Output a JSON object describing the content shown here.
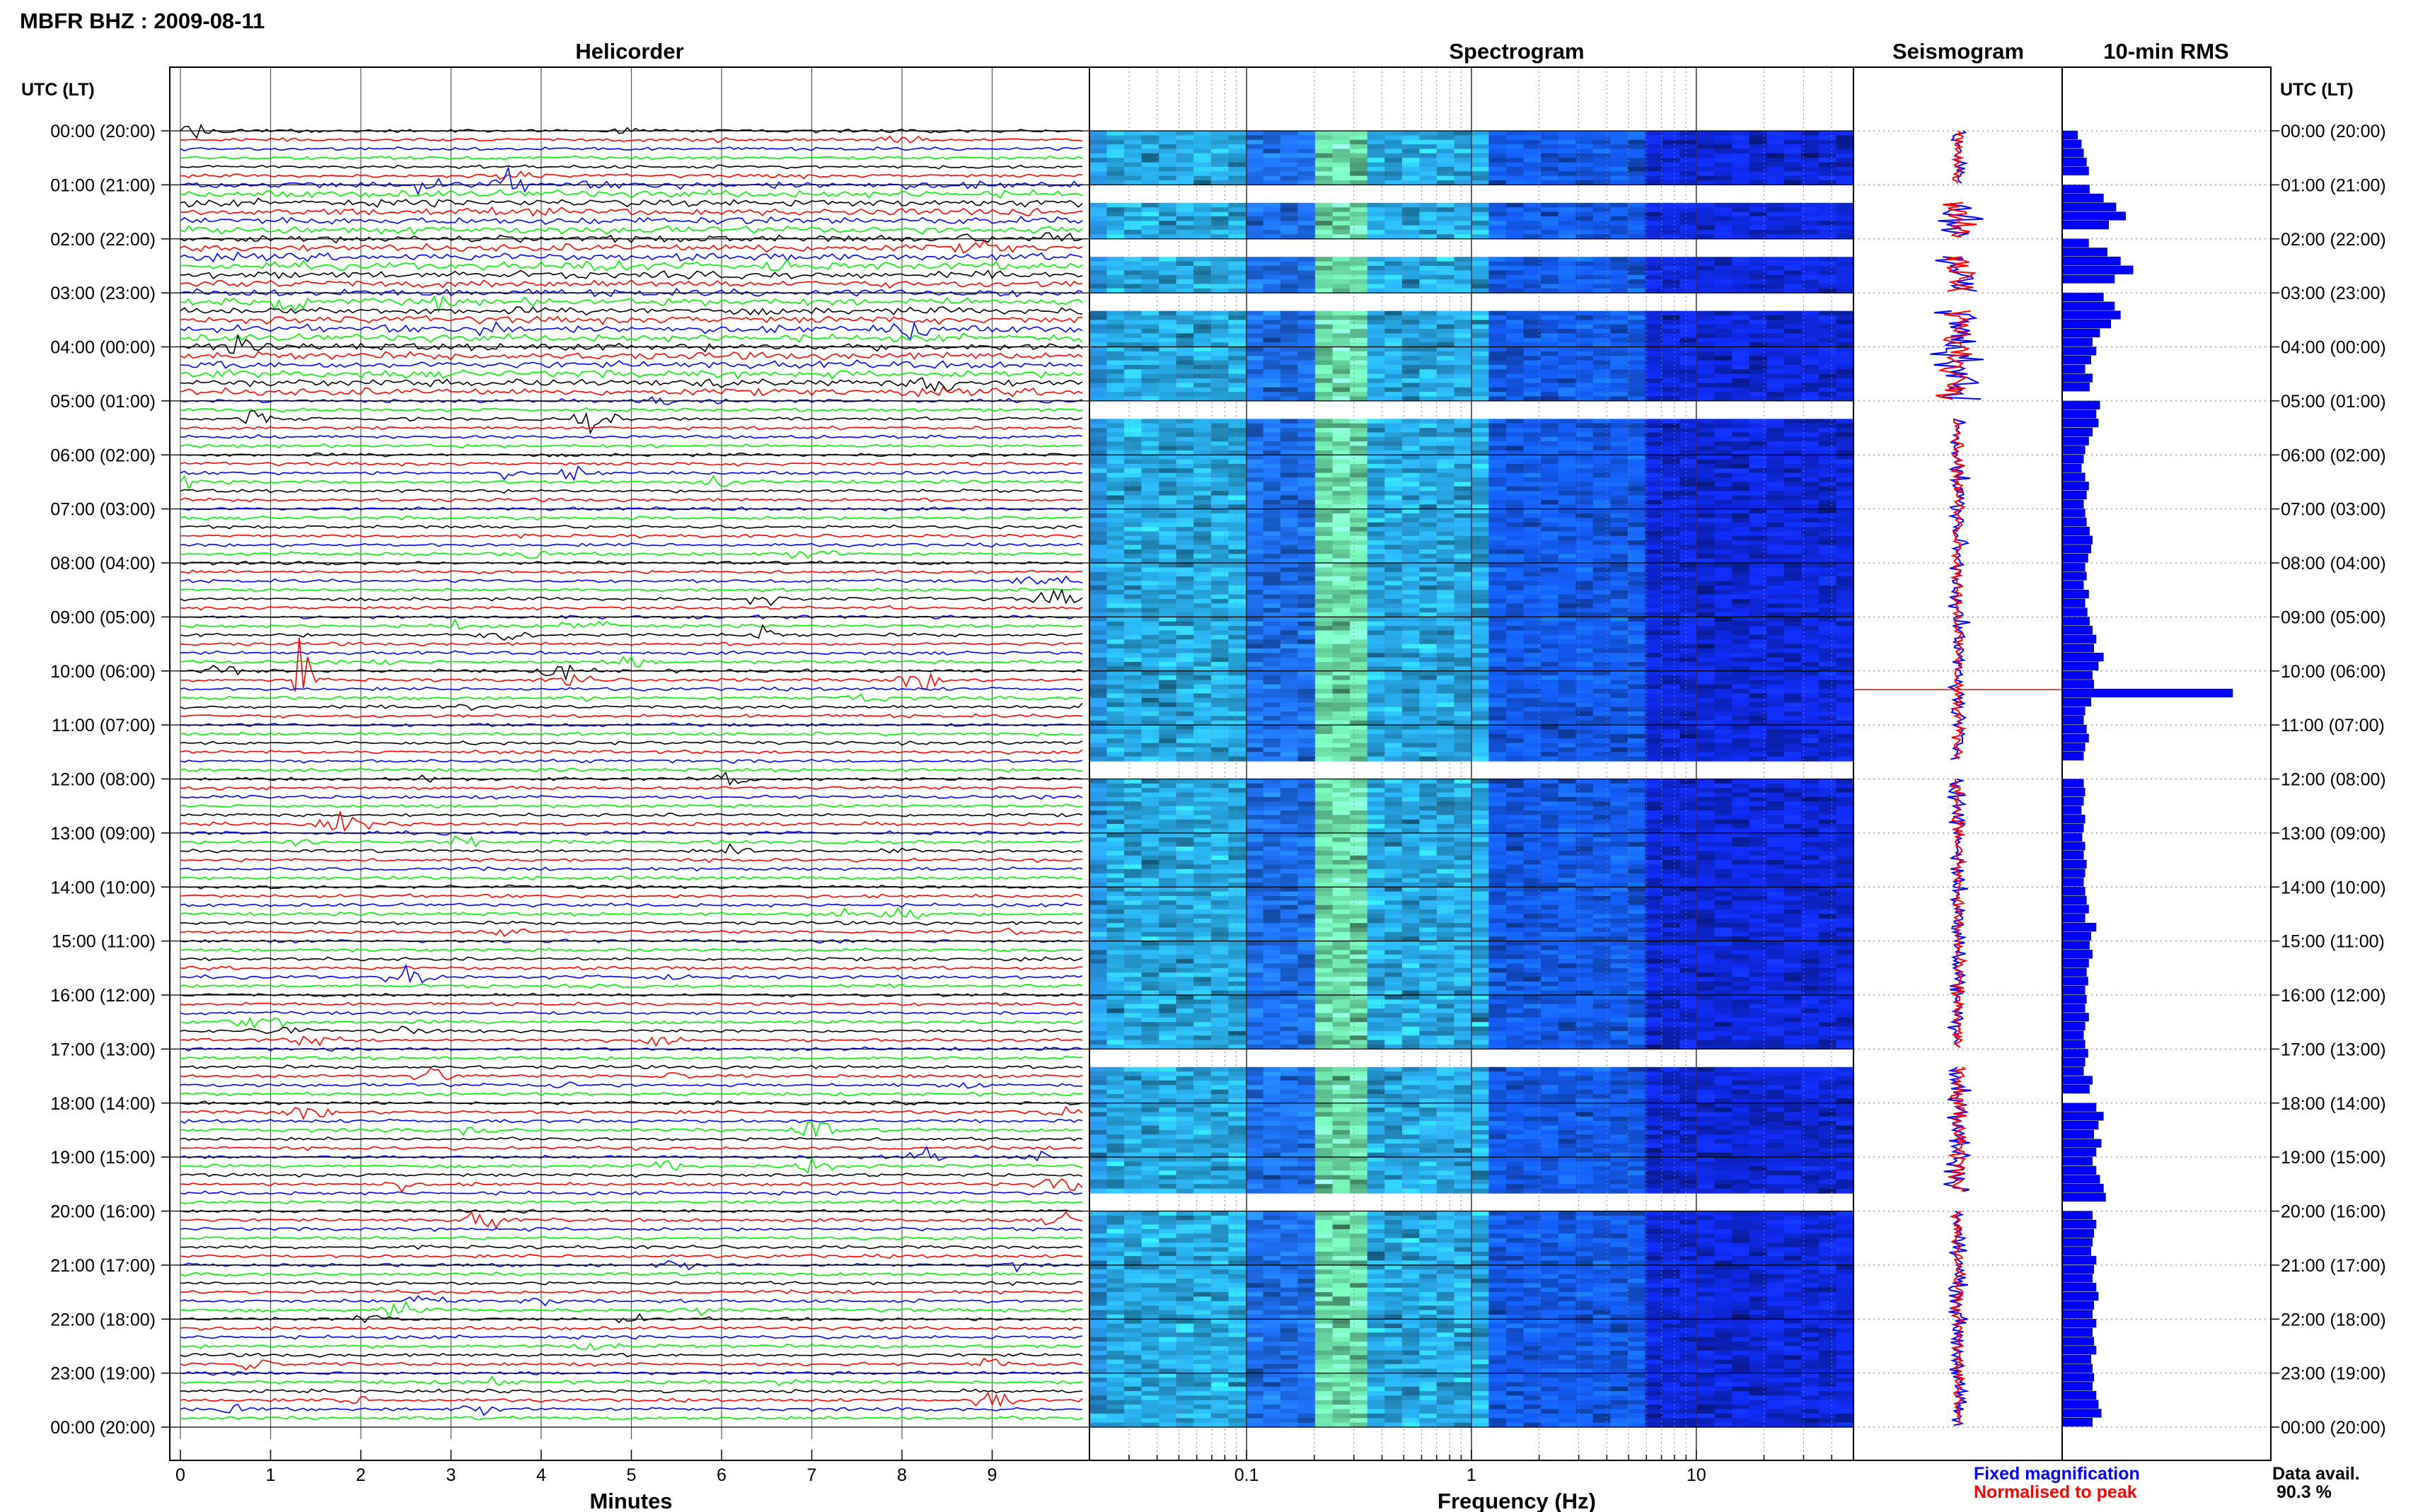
{
  "header": {
    "station_title": "MBFR BHZ : 2009-08-11"
  },
  "panels": {
    "helicorder_title": "Helicorder",
    "spectrogram_title": "Spectrogram",
    "seismogram_title": "Seismogram",
    "rms_title": "10-min RMS"
  },
  "axes": {
    "left_time_label": "UTC (LT)",
    "right_time_label": "UTC (LT)",
    "helicorder_xlabel": "Minutes",
    "spectrogram_xlabel": "Frequency (Hz)"
  },
  "legend": {
    "fixed": "Fixed magnification",
    "normalised": "Normalised to peak",
    "fixed_color": "#0000ff",
    "normalised_color": "#ff0000"
  },
  "availability": {
    "label": "Data avail.",
    "value": "90.3 %"
  },
  "colors": {
    "trace_cycle": [
      "#000000",
      "#ff0000",
      "#0000ff",
      "#00ee00"
    ],
    "rms_bar": "#0000ff",
    "seismogram_fixed": "#0000ff",
    "seismogram_normalised": "#ff0000"
  },
  "chart_data": [
    {
      "type": "line",
      "title": "Helicorder",
      "xlabel": "Minutes",
      "xlim": [
        0,
        10
      ],
      "x_ticks": [
        "0",
        "1",
        "2",
        "3",
        "4",
        "5",
        "6",
        "7",
        "8",
        "9"
      ],
      "y_tick_labels": [
        "00:00 (20:00)",
        "01:00 (21:00)",
        "02:00 (22:00)",
        "03:00 (23:00)",
        "04:00 (00:00)",
        "05:00 (01:00)",
        "06:00 (02:00)",
        "07:00 (03:00)",
        "08:00 (04:00)",
        "09:00 (05:00)",
        "10:00 (06:00)",
        "11:00 (07:00)",
        "12:00 (08:00)",
        "13:00 (09:00)",
        "14:00 (10:00)",
        "15:00 (11:00)",
        "16:00 (12:00)",
        "17:00 (13:00)",
        "18:00 (14:00)",
        "19:00 (15:00)",
        "20:00 (16:00)",
        "21:00 (17:00)",
        "22:00 (18:00)",
        "23:00 (19:00)",
        "00:00 (20:00)"
      ],
      "traces_per_hour": 6,
      "hours": 24,
      "trace_color_cycle": [
        "black",
        "red",
        "blue",
        "green"
      ],
      "notable_event": {
        "time_utc": "10:10",
        "minute": 1.35
      }
    },
    {
      "type": "heatmap",
      "title": "Spectrogram",
      "xlabel": "Frequency (Hz)",
      "x_scale": "log",
      "xlim": [
        0.02,
        50
      ],
      "x_ticks": [
        "0.1",
        "1",
        "10"
      ],
      "colormap": [
        "#1a3cff",
        "#00bfff",
        "#5ef0a0"
      ],
      "data_gaps_utc": [
        [
          "01:00",
          "01:20"
        ],
        [
          "02:00",
          "02:20"
        ],
        [
          "03:00",
          "03:20"
        ],
        [
          "05:00",
          "05:20"
        ],
        [
          "11:40",
          "12:00"
        ],
        [
          "17:00",
          "17:20"
        ],
        [
          "19:40",
          "20:00"
        ]
      ]
    },
    {
      "type": "line",
      "title": "Seismogram",
      "series": [
        {
          "name": "Fixed magnification",
          "color": "#0000ff"
        },
        {
          "name": "Normalised to peak",
          "color": "#ff0000"
        }
      ]
    },
    {
      "type": "bar",
      "title": "10-min RMS",
      "orientation": "horizontal",
      "bins_per_hour": 6,
      "values": [
        0.2,
        0.25,
        0.28,
        0.32,
        0.35,
        0.0,
        0.36,
        0.55,
        0.72,
        0.85,
        0.62,
        0.0,
        0.35,
        0.6,
        0.78,
        0.95,
        0.7,
        0.0,
        0.55,
        0.7,
        0.78,
        0.65,
        0.5,
        0.4,
        0.45,
        0.38,
        0.3,
        0.4,
        0.36,
        0.0,
        0.5,
        0.45,
        0.48,
        0.4,
        0.35,
        0.3,
        0.28,
        0.25,
        0.3,
        0.35,
        0.32,
        0.28,
        0.3,
        0.32,
        0.36,
        0.4,
        0.38,
        0.34,
        0.3,
        0.32,
        0.28,
        0.35,
        0.3,
        0.33,
        0.36,
        0.4,
        0.45,
        0.42,
        0.55,
        0.48,
        0.4,
        0.42,
        2.3,
        0.38,
        0.3,
        0.28,
        0.32,
        0.35,
        0.3,
        0.28,
        0.0,
        0.0,
        0.28,
        0.3,
        0.28,
        0.25,
        0.3,
        0.28,
        0.26,
        0.3,
        0.28,
        0.32,
        0.3,
        0.28,
        0.3,
        0.32,
        0.35,
        0.3,
        0.45,
        0.38,
        0.36,
        0.4,
        0.35,
        0.32,
        0.34,
        0.3,
        0.32,
        0.3,
        0.35,
        0.3,
        0.28,
        0.3,
        0.34,
        0.3,
        0.28,
        0.4,
        0.36,
        0.0,
        0.45,
        0.55,
        0.48,
        0.42,
        0.52,
        0.45,
        0.4,
        0.45,
        0.5,
        0.55,
        0.58,
        0.0,
        0.4,
        0.45,
        0.42,
        0.4,
        0.38,
        0.45,
        0.42,
        0.4,
        0.45,
        0.48,
        0.42,
        0.4,
        0.45,
        0.4,
        0.42,
        0.45,
        0.38,
        0.4,
        0.42,
        0.4,
        0.45,
        0.48,
        0.52,
        0.4
      ]
    }
  ]
}
